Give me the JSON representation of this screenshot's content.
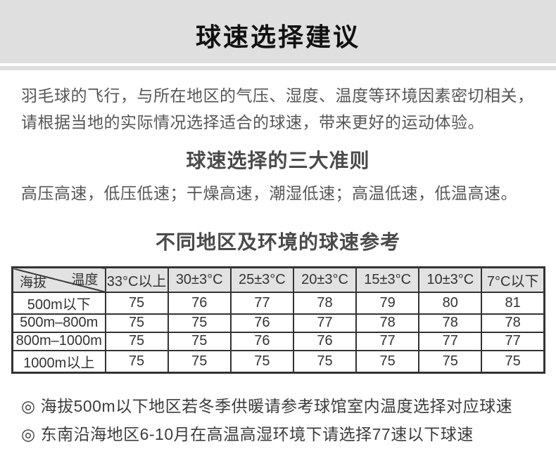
{
  "header": {
    "title": "球速选择建议"
  },
  "intro": {
    "text": "羽毛球的飞行，与所在地区的气压、湿度、温度等环境因素密切相关，请根据当地的实际情况选择适合的球速，带来更好的运动体验。"
  },
  "principles": {
    "title": "球速选择的三大准则",
    "text": "高压高速，低压低速；干燥高速，潮湿低速；高温低速，低温高速。"
  },
  "reference": {
    "title": "不同地区及环境的球速参考",
    "table": {
      "corner": {
        "top_right": "温度",
        "bottom_left": "海拔"
      },
      "columns": [
        "33°C以上",
        "30±3°C",
        "25±3°C",
        "20±3°C",
        "15±3°C",
        "10±3°C",
        "7°C以下"
      ],
      "rows": [
        {
          "label": "500m以下",
          "values": [
            75,
            76,
            77,
            78,
            79,
            80,
            81
          ]
        },
        {
          "label": "500m–800m",
          "values": [
            75,
            75,
            76,
            77,
            78,
            78,
            78
          ]
        },
        {
          "label": "800m–1000m",
          "values": [
            75,
            75,
            76,
            76,
            77,
            77,
            77
          ]
        },
        {
          "label": "1000m以上",
          "values": [
            75,
            75,
            75,
            75,
            75,
            75,
            75
          ]
        }
      ]
    }
  },
  "notes": {
    "bullet": "◎",
    "items": [
      "海拔500m以下地区若冬季供暖请参考球馆室内温度选择对应球速",
      "东南沿海地区6-10月在高温高湿环境下请选择77速以下球速"
    ]
  },
  "colors": {
    "header_bg": "#dfdfdf",
    "table_header_bg": "#e2e2e2",
    "table_border": "#333333",
    "title_text": "#111111",
    "body_text": "#565656",
    "note_text": "#3c3c3c"
  }
}
